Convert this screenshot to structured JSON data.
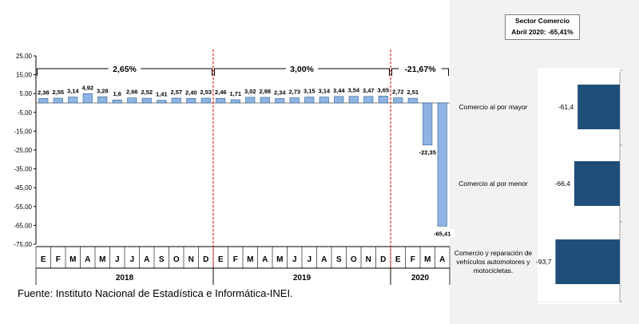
{
  "source": "Fuente: Instituto Nacional de Estadística e Informática-INEI.",
  "colors": {
    "bar_light": "#8db4e2",
    "bar_dark": "#1f4e79",
    "bar_stroke": "#2f5f8f",
    "divider": "#e8251c"
  },
  "chart_data": [
    {
      "type": "bar",
      "y_ticks": [
        "25,00",
        "15,00",
        "5,00",
        "-5,00",
        "-15,00",
        "-25,00",
        "-35,00",
        "-45,00",
        "-55,00",
        "-65,00",
        "-75,00"
      ],
      "ylim": [
        -75,
        25
      ],
      "categories": [
        "E",
        "F",
        "M",
        "A",
        "M",
        "J",
        "J",
        "A",
        "S",
        "O",
        "N",
        "D",
        "E",
        "F",
        "M",
        "A",
        "M",
        "J",
        "J",
        "A",
        "S",
        "O",
        "N",
        "D",
        "E",
        "F",
        "M",
        "A"
      ],
      "years": [
        {
          "label": "2018",
          "start": 0,
          "end": 11
        },
        {
          "label": "2019",
          "start": 12,
          "end": 23
        },
        {
          "label": "2020",
          "start": 24,
          "end": 27
        }
      ],
      "values": [
        2.38,
        2.55,
        3.14,
        4.92,
        3.28,
        1.6,
        2.66,
        2.52,
        1.41,
        2.57,
        2.4,
        2.53,
        2.46,
        1.71,
        3.02,
        2.98,
        2.34,
        2.73,
        3.15,
        3.14,
        3.44,
        3.54,
        3.47,
        3.65,
        2.72,
        2.51,
        -22.35,
        -65.41
      ],
      "value_labels": [
        "2,38",
        "2,55",
        "3,14",
        "4,92",
        "3,28",
        "1,6",
        "2,66",
        "2,52",
        "1,41",
        "2,57",
        "2,40",
        "2,53",
        "2,46",
        "1,71",
        "3,02",
        "2,98",
        "2,34",
        "2,73",
        "3,15",
        "3,14",
        "3,44",
        "3,54",
        "3,47",
        "3,65",
        "2,72",
        "2,51",
        "-22,35",
        "-65,41"
      ],
      "period_annotations": [
        {
          "label": "2,65%",
          "start": 0,
          "end": 11
        },
        {
          "label": "3,00%",
          "start": 12,
          "end": 23
        },
        {
          "label": "-21,67%",
          "start": 24,
          "end": 27
        }
      ]
    },
    {
      "type": "bar",
      "orientation": "horizontal",
      "title_lines": [
        "Sector Comercio",
        "Abril 2020: -65,41%"
      ],
      "categories": [
        [
          "Comercio al por mayor"
        ],
        [
          "Comercio al por menor"
        ],
        [
          "Comercio y reparación de",
          "vehículos automotores y",
          "motocicletas."
        ]
      ],
      "values": [
        -61.4,
        -66.4,
        -93.7
      ],
      "value_labels": [
        "-61,4",
        "-66,4",
        "-93,7"
      ]
    }
  ]
}
